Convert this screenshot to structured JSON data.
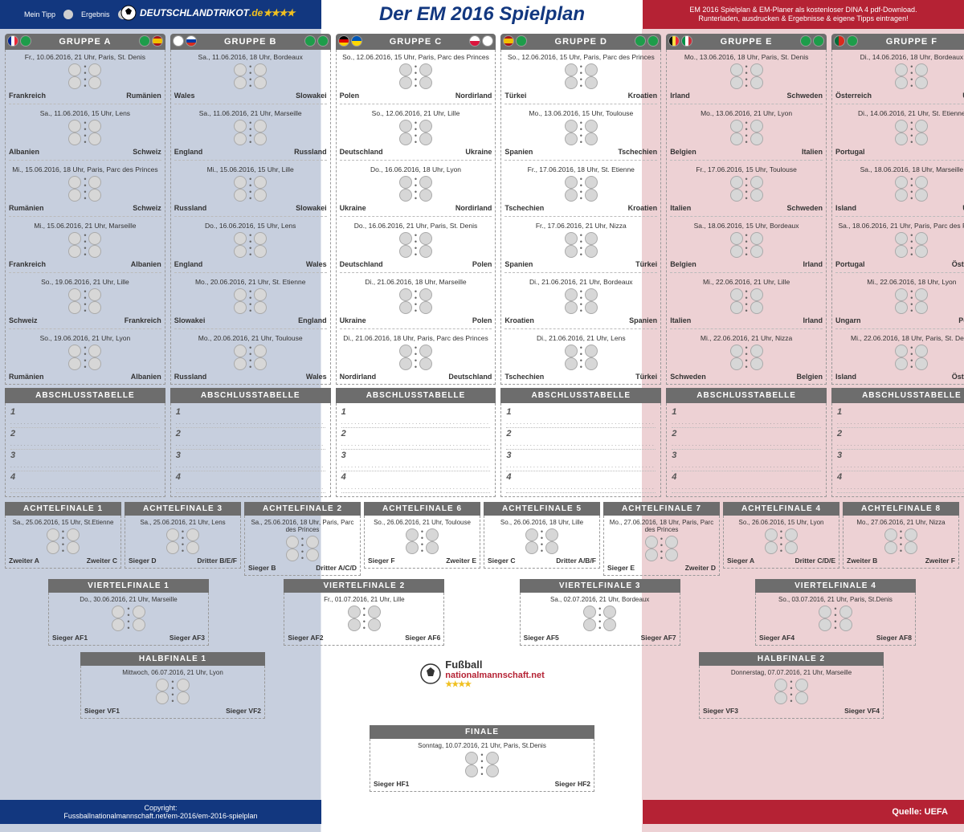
{
  "title": "Der EM 2016 Spielplan",
  "legend": {
    "tipp": "Mein Tipp",
    "erg": "Ergebnis"
  },
  "brand": "DEUTSCHLANDTRIKOT",
  "brand_suffix": ".de",
  "banner1": "EM 2016 Spielplan & EM-Planer als kostenloser DINA 4 pdf-Download.",
  "banner2": "Runterladen, ausdrucken & Ergebnisse & eigene Tipps eintragen!",
  "abschluss": "ABSCHLUSSTABELLE",
  "rows": [
    "1",
    "2",
    "3",
    "4"
  ],
  "copyright1": "Copyright:",
  "copyright2": "Fussballnationalmannschaft.net/em-2016/em-2016-spielplan",
  "quelle": "Quelle: UEFA",
  "logo2_a": "Fußball",
  "logo2_b": "nationalmannschaft.net",
  "groups": [
    {
      "name": "GRUPPE A",
      "flagsL": [
        "",
        "plain"
      ],
      "flagsR": [
        "plain",
        "es"
      ],
      "matches": [
        {
          "d": "Fr., 10.06.2016, 21 Uhr, Paris, St. Denis",
          "a": "Frankreich",
          "b": "Rumänien"
        },
        {
          "d": "Sa., 11.06.2016, 15 Uhr, Lens",
          "a": "Albanien",
          "b": "Schweiz"
        },
        {
          "d": "Mi., 15.06.2016, 18 Uhr, Paris, Parc des Princes",
          "a": "Rumänien",
          "b": "Schweiz"
        },
        {
          "d": "Mi., 15.06.2016, 21 Uhr, Marseille",
          "a": "Frankreich",
          "b": "Albanien"
        },
        {
          "d": "So., 19.06.2016, 21 Uhr, Lille",
          "a": "Schweiz",
          "b": "Frankreich"
        },
        {
          "d": "So., 19.06.2016, 21 Uhr, Lyon",
          "a": "Rumänien",
          "b": "Albanien"
        }
      ]
    },
    {
      "name": "GRUPPE B",
      "flagsL": [
        "en",
        "ru"
      ],
      "flagsR": [
        "plain",
        "plain"
      ],
      "matches": [
        {
          "d": "Sa., 11.06.2016, 18 Uhr, Bordeaux",
          "a": "Wales",
          "b": "Slowakei"
        },
        {
          "d": "Sa., 11.06.2016, 21 Uhr, Marseille",
          "a": "England",
          "b": "Russland"
        },
        {
          "d": "Mi., 15.06.2016, 15 Uhr, Lille",
          "a": "Russland",
          "b": "Slowakei"
        },
        {
          "d": "Do., 16.06.2016, 15 Uhr, Lens",
          "a": "England",
          "b": "Wales"
        },
        {
          "d": "Mo., 20.06.2016, 21 Uhr, St. Etienne",
          "a": "Slowakei",
          "b": "England"
        },
        {
          "d": "Mo., 20.06.2016, 21 Uhr, Toulouse",
          "a": "Russland",
          "b": "Wales"
        }
      ]
    },
    {
      "name": "GRUPPE C",
      "flagsL": [
        "de",
        "ua"
      ],
      "flagsR": [
        "pl",
        "en"
      ],
      "matches": [
        {
          "d": "So., 12.06.2016, 15 Uhr, Paris, Parc des Princes",
          "a": "Polen",
          "b": "Nordirland"
        },
        {
          "d": "So., 12.06.2016, 21 Uhr, Lille",
          "a": "Deutschland",
          "b": "Ukraine"
        },
        {
          "d": "Do., 16.06.2016, 18 Uhr, Lyon",
          "a": "Ukraine",
          "b": "Nordirland"
        },
        {
          "d": "Do., 16.06.2016, 21 Uhr, Paris, St. Denis",
          "a": "Deutschland",
          "b": "Polen"
        },
        {
          "d": "Di., 21.06.2016, 18 Uhr, Marseille",
          "a": "Ukraine",
          "b": "Polen"
        },
        {
          "d": "Di., 21.06.2016, 18 Uhr, Paris, Parc des Princes",
          "a": "Nordirland",
          "b": "Deutschland"
        }
      ]
    },
    {
      "name": "GRUPPE D",
      "flagsL": [
        "es",
        "plain"
      ],
      "flagsR": [
        "plain",
        "plain"
      ],
      "matches": [
        {
          "d": "So., 12.06.2016, 15 Uhr, Paris, Parc des Princes",
          "a": "Türkei",
          "b": "Kroatien"
        },
        {
          "d": "Mo., 13.06.2016, 15 Uhr, Toulouse",
          "a": "Spanien",
          "b": "Tschechien"
        },
        {
          "d": "Fr., 17.06.2016, 18 Uhr, St. Etienne",
          "a": "Tschechien",
          "b": "Kroatien"
        },
        {
          "d": "Fr., 17.06.2016, 21 Uhr, Nizza",
          "a": "Spanien",
          "b": "Türkei"
        },
        {
          "d": "Di., 21.06.2016, 21 Uhr, Bordeaux",
          "a": "Kroatien",
          "b": "Spanien"
        },
        {
          "d": "Di., 21.06.2016, 21 Uhr, Lens",
          "a": "Tschechien",
          "b": "Türkei"
        }
      ]
    },
    {
      "name": "GRUPPE E",
      "flagsL": [
        "be",
        "it"
      ],
      "flagsR": [
        "plain",
        "plain"
      ],
      "matches": [
        {
          "d": "Mo., 13.06.2016, 18 Uhr, Paris, St. Denis",
          "a": "Irland",
          "b": "Schweden"
        },
        {
          "d": "Mo., 13.06.2016, 21 Uhr, Lyon",
          "a": "Belgien",
          "b": "Italien"
        },
        {
          "d": "Fr., 17.06.2016, 15 Uhr, Toulouse",
          "a": "Italien",
          "b": "Schweden"
        },
        {
          "d": "Sa., 18.06.2016, 15 Uhr, Bordeaux",
          "a": "Belgien",
          "b": "Irland"
        },
        {
          "d": "Mi., 22.06.2016, 21 Uhr, Lille",
          "a": "Italien",
          "b": "Irland"
        },
        {
          "d": "Mi., 22.06.2016, 21 Uhr, Nizza",
          "a": "Schweden",
          "b": "Belgien"
        }
      ]
    },
    {
      "name": "GRUPPE F",
      "flagsL": [
        "pt",
        "plain"
      ],
      "flagsR": [
        "plain",
        "plain"
      ],
      "matches": [
        {
          "d": "Di., 14.06.2016, 18 Uhr, Bordeaux",
          "a": "Österreich",
          "b": "Ungarn"
        },
        {
          "d": "Di., 14.06.2016, 21 Uhr, St. Etienne",
          "a": "Portugal",
          "b": "Island"
        },
        {
          "d": "Sa., 18.06.2016, 18 Uhr, Marseille",
          "a": "Island",
          "b": "Ungarn"
        },
        {
          "d": "Sa., 18.06.2016, 21 Uhr, Paris, Parc des Princes",
          "a": "Portugal",
          "b": "Österreich"
        },
        {
          "d": "Mi., 22.06.2016, 18 Uhr, Lyon",
          "a": "Ungarn",
          "b": "Portugal"
        },
        {
          "d": "Mi., 22.06.2016, 18 Uhr, Paris, St. Denis",
          "a": "Island",
          "b": "Österreich"
        }
      ]
    }
  ],
  "af": [
    {
      "h": "ACHTELFINALE 1",
      "d": "Sa., 25.06.2016, 15 Uhr, St.Etienne",
      "a": "Zweiter A",
      "b": "Zweiter C"
    },
    {
      "h": "ACHTELFINALE 3",
      "d": "Sa., 25.06.2016, 21 Uhr, Lens",
      "a": "Sieger D",
      "b": "Dritter B/E/F"
    },
    {
      "h": "ACHTELFINALE 2",
      "d": "Sa., 25.06.2016, 18 Uhr, Paris, Parc des Princes",
      "a": "Sieger B",
      "b": "Dritter A/C/D"
    },
    {
      "h": "ACHTELFINALE 6",
      "d": "So., 26.06.2016, 21 Uhr, Toulouse",
      "a": "Sieger F",
      "b": "Zweiter E"
    },
    {
      "h": "ACHTELFINALE 5",
      "d": "So., 26.06.2016, 18 Uhr, Lille",
      "a": "Sieger C",
      "b": "Dritter A/B/F"
    },
    {
      "h": "ACHTELFINALE 7",
      "d": "Mo., 27.06.2016, 18 Uhr, Paris, Parc des Princes",
      "a": "Sieger E",
      "b": "Zweiter D"
    },
    {
      "h": "ACHTELFINALE 4",
      "d": "So., 26.06.2016, 15 Uhr, Lyon",
      "a": "Sieger A",
      "b": "Dritter C/D/E"
    },
    {
      "h": "ACHTELFINALE 8",
      "d": "Mo., 27.06.2016, 21 Uhr, Nizza",
      "a": "Zweiter B",
      "b": "Zweiter F"
    }
  ],
  "vf": [
    {
      "h": "VIERTELFINALE 1",
      "d": "Do., 30.06.2016, 21 Uhr, Marseille",
      "a": "Sieger AF1",
      "b": "Sieger AF3"
    },
    {
      "h": "VIERTELFINALE 2",
      "d": "Fr., 01.07.2016, 21 Uhr, Lille",
      "a": "Sieger AF2",
      "b": "Sieger AF6"
    },
    {
      "h": "VIERTELFINALE 3",
      "d": "Sa., 02.07.2016, 21 Uhr, Bordeaux",
      "a": "Sieger AF5",
      "b": "Sieger AF7"
    },
    {
      "h": "VIERTELFINALE 4",
      "d": "So., 03.07.2016, 21 Uhr, Paris, St.Denis",
      "a": "Sieger AF4",
      "b": "Sieger AF8"
    }
  ],
  "hf": [
    {
      "h": "HALBFINALE 1",
      "d": "Mittwoch, 06.07.2016, 21 Uhr, Lyon",
      "a": "Sieger VF1",
      "b": "Sieger VF2"
    },
    {
      "h": "HALBFINALE 2",
      "d": "Donnerstag, 07.07.2016, 21 Uhr, Marseille",
      "a": "Sieger VF3",
      "b": "Sieger VF4"
    }
  ],
  "final": {
    "h": "FINALE",
    "d": "Sonntag, 10.07.2016, 21 Uhr, Paris, St.Denis",
    "a": "Sieger HF1",
    "b": "Sieger HF2"
  },
  "colors": {
    "blue": "#12377f",
    "red": "#b52234",
    "grey": "#6d6d6d",
    "bg_blue": "#c7cfde",
    "bg_red": "#edd1d4"
  }
}
